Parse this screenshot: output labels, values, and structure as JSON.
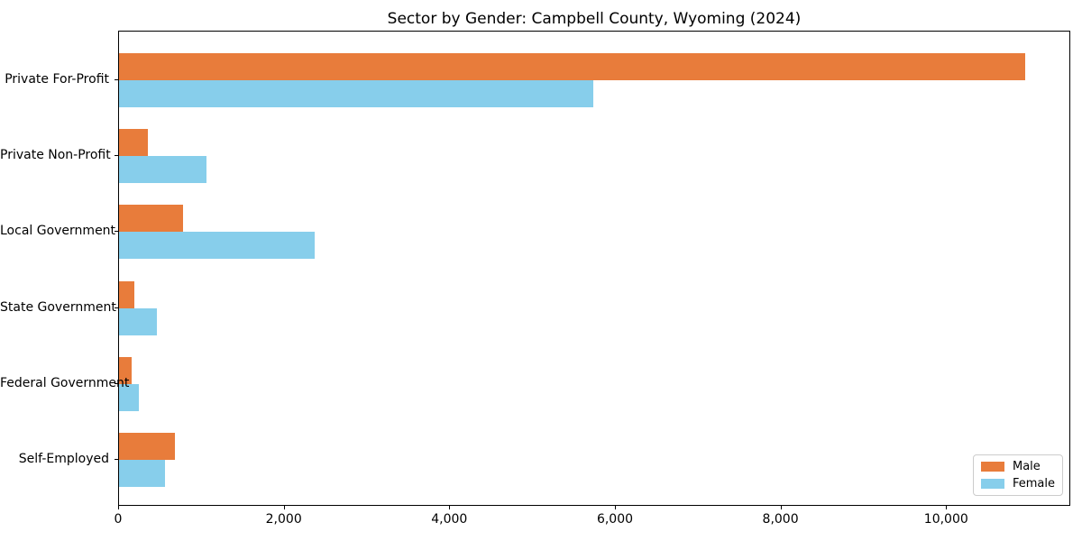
{
  "chart_data": {
    "type": "bar",
    "orientation": "horizontal",
    "title": "Sector by Gender: Campbell County, Wyoming (2024)",
    "categories": [
      "Private For-Profit",
      "Private Non-Profit",
      "Local Government",
      "State Government",
      "Federal Government",
      "Self-Employed"
    ],
    "series": [
      {
        "name": "Male",
        "color": "#E87C3B",
        "values": [
          10940,
          350,
          775,
          185,
          150,
          675
        ]
      },
      {
        "name": "Female",
        "color": "#87CEEB",
        "values": [
          5730,
          1060,
          2360,
          460,
          240,
          555
        ]
      }
    ],
    "xlabel": "",
    "ylabel": "",
    "xlim": [
      0,
      11500
    ],
    "xticks": [
      0,
      2000,
      4000,
      6000,
      8000,
      10000
    ],
    "xtick_labels": [
      "0",
      "2,000",
      "4,000",
      "6,000",
      "8,000",
      "10,000"
    ],
    "grid": false,
    "legend": {
      "position": "lower right",
      "entries": [
        "Male",
        "Female"
      ]
    }
  },
  "colors": {
    "male": "#E87C3B",
    "female": "#87CEEB",
    "spine": "#000000",
    "background": "#ffffff",
    "legend_border": "#cccccc"
  }
}
